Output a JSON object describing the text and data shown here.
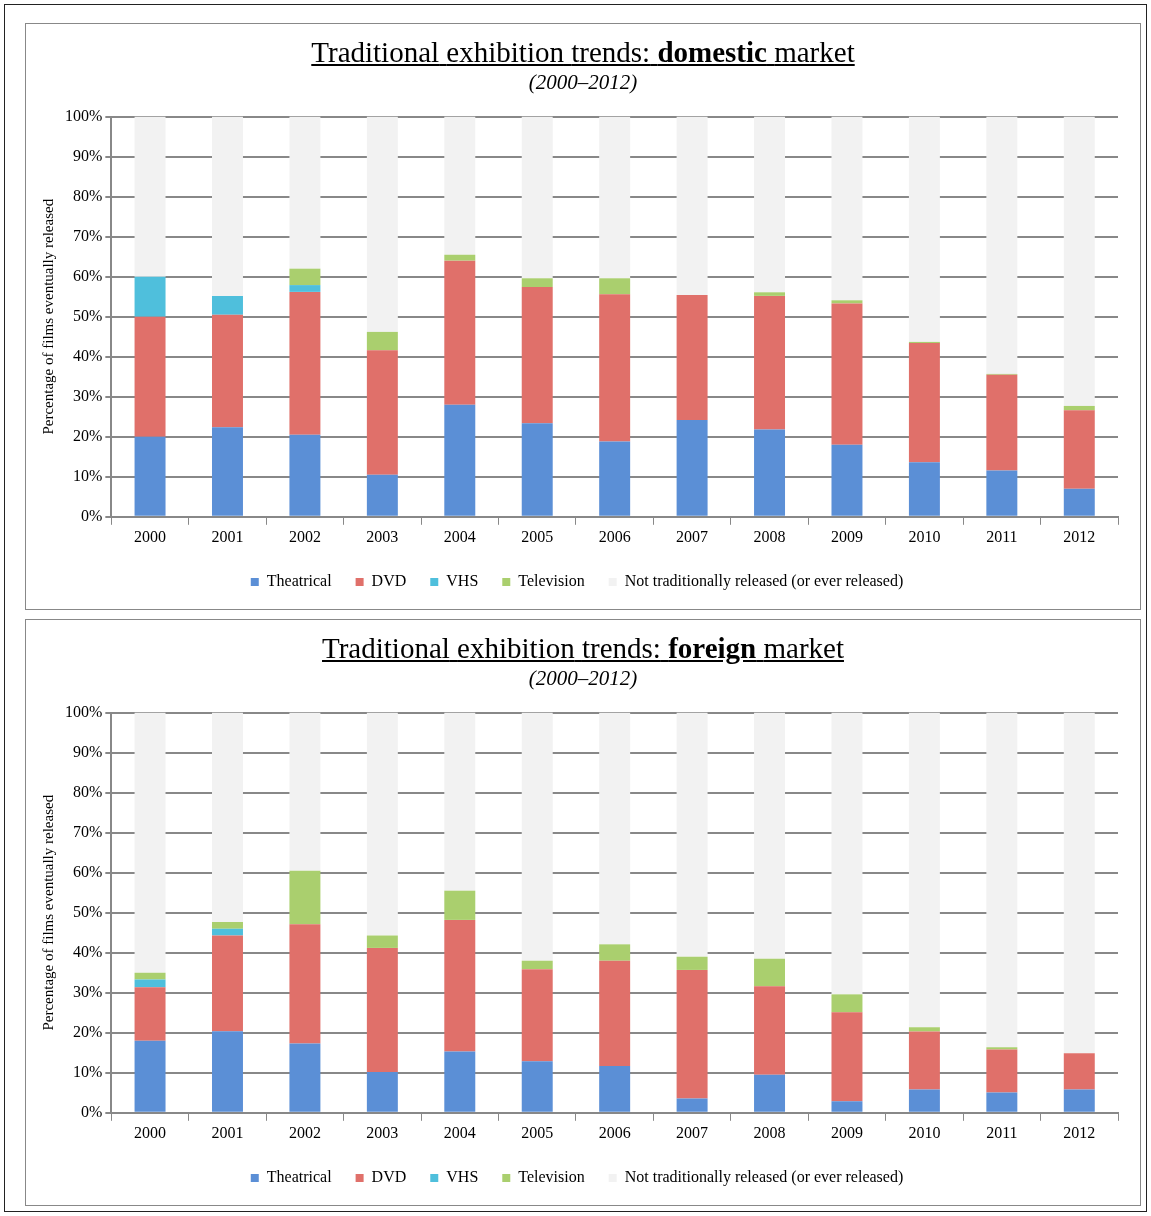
{
  "chart_data": [
    {
      "type": "bar",
      "stacked": true,
      "title": "Traditional exhibition trends: domestic market",
      "subtitle": "(2000–2012)",
      "ylabel": "Percentage of films eventually released",
      "categories": [
        "2000",
        "2001",
        "2002",
        "2003",
        "2004",
        "2005",
        "2006",
        "2007",
        "2008",
        "2009",
        "2010",
        "2011",
        "2012"
      ],
      "series": [
        {
          "name": "Theatrical",
          "color": "#5b8fd6",
          "values": [
            20.0,
            22.4,
            20.5,
            10.5,
            28.0,
            23.4,
            18.8,
            24.2,
            21.8,
            18.0,
            13.6,
            11.6,
            7.0
          ]
        },
        {
          "name": "DVD",
          "color": "#e0706a",
          "values": [
            30.0,
            28.1,
            35.7,
            31.1,
            36.0,
            34.0,
            36.8,
            31.2,
            33.4,
            35.3,
            29.8,
            23.9,
            19.6
          ]
        },
        {
          "name": "VHS",
          "color": "#4fbfdc",
          "values": [
            10.0,
            4.7,
            1.7,
            0,
            0,
            0,
            0,
            0,
            0,
            0,
            0,
            0,
            0
          ]
        },
        {
          "name": "Television",
          "color": "#aacf6e",
          "values": [
            0,
            0,
            4.1,
            4.6,
            1.5,
            2.2,
            4.0,
            0,
            0.9,
            0.8,
            0.3,
            0.2,
            1.1
          ]
        },
        {
          "name": "Not traditionally released (or ever released)",
          "color": "#f2f2f2",
          "values": [
            40.0,
            44.8,
            38.0,
            53.8,
            34.5,
            40.4,
            40.4,
            44.6,
            43.9,
            45.9,
            56.3,
            64.3,
            72.3
          ]
        }
      ],
      "ylim": [
        0,
        100
      ],
      "yticks": [
        {
          "value": 0,
          "label": "0%"
        },
        {
          "value": 10,
          "label": "10%"
        },
        {
          "value": 20,
          "label": "20%"
        },
        {
          "value": 30,
          "label": "30%"
        },
        {
          "value": 40,
          "label": "40%"
        },
        {
          "value": 50,
          "label": "50%"
        },
        {
          "value": 60,
          "label": "60%"
        },
        {
          "value": 70,
          "label": "70%"
        },
        {
          "value": 80,
          "label": "80%"
        },
        {
          "value": 90,
          "label": "90%"
        },
        {
          "value": 100,
          "label": "100%"
        }
      ],
      "grid": "y",
      "legend": "bottom"
    },
    {
      "type": "bar",
      "stacked": true,
      "title": "Traditional exhibition trends: foreign market",
      "subtitle": "(2000–2012)",
      "ylabel": "Percentage of films eventually released",
      "categories": [
        "2000",
        "2001",
        "2002",
        "2003",
        "2004",
        "2005",
        "2006",
        "2007",
        "2008",
        "2009",
        "2010",
        "2011",
        "2012"
      ],
      "series": [
        {
          "name": "Theatrical",
          "color": "#5b8fd6",
          "values": [
            18.0,
            20.4,
            17.3,
            10.2,
            15.3,
            12.9,
            11.7,
            3.6,
            9.5,
            2.9,
            5.8,
            5.1,
            5.8
          ]
        },
        {
          "name": "DVD",
          "color": "#e0706a",
          "values": [
            13.4,
            23.9,
            29.8,
            31.0,
            32.9,
            23.0,
            26.3,
            32.1,
            22.1,
            22.2,
            14.5,
            10.7,
            9.1
          ]
        },
        {
          "name": "VHS",
          "color": "#4fbfdc",
          "values": [
            1.9,
            1.7,
            0,
            0,
            0,
            0,
            0,
            0,
            0,
            0,
            0,
            0,
            0
          ]
        },
        {
          "name": "Television",
          "color": "#aacf6e",
          "values": [
            1.7,
            1.7,
            13.4,
            3.1,
            7.3,
            2.1,
            4.1,
            3.3,
            6.9,
            4.5,
            1.1,
            0.6,
            0
          ]
        },
        {
          "name": "Not traditionally released (or ever released)",
          "color": "#f2f2f2",
          "values": [
            65.0,
            52.3,
            39.5,
            55.7,
            44.5,
            62.0,
            57.9,
            61.0,
            61.5,
            70.4,
            78.6,
            83.6,
            85.1
          ]
        }
      ],
      "ylim": [
        0,
        100
      ],
      "yticks": [
        {
          "value": 0,
          "label": "0%"
        },
        {
          "value": 10,
          "label": "10%"
        },
        {
          "value": 20,
          "label": "20%"
        },
        {
          "value": 30,
          "label": "30%"
        },
        {
          "value": 40,
          "label": "40%"
        },
        {
          "value": 50,
          "label": "50%"
        },
        {
          "value": 60,
          "label": "60%"
        },
        {
          "value": 70,
          "label": "70%"
        },
        {
          "value": 80,
          "label": "80%"
        },
        {
          "value": 90,
          "label": "90%"
        },
        {
          "value": 100,
          "label": "100%"
        }
      ],
      "grid": "y",
      "legend": "bottom"
    }
  ]
}
